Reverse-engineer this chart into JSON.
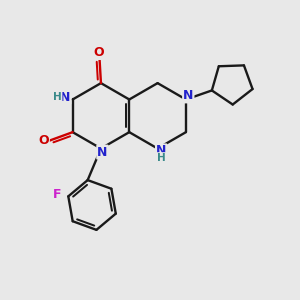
{
  "bg": "#e8e8e8",
  "bc": "#1a1a1a",
  "nc": "#2222cc",
  "oc": "#cc0000",
  "fc": "#cc22cc",
  "hc": "#3a8a8a",
  "lw": 1.7,
  "fs": 9.0,
  "fsh": 7.5,
  "xlim": [
    0,
    10
  ],
  "ylim": [
    0,
    10
  ]
}
